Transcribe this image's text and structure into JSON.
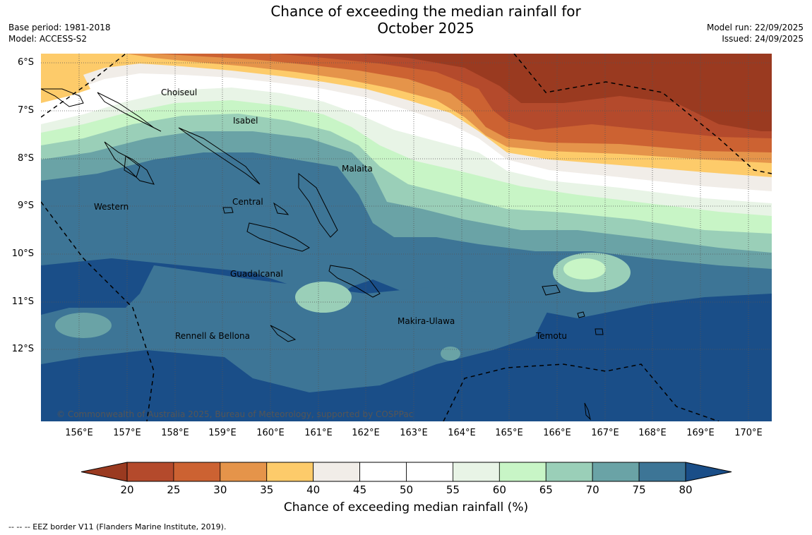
{
  "title_line1": "Chance of exceeding the median rainfall for",
  "title_line2": "October 2025",
  "meta_left": {
    "base_period": "Base period: 1981-2018",
    "model": "Model: ACCESS-S2"
  },
  "meta_right": {
    "model_run": "Model run: 22/09/2025",
    "issued": "Issued: 24/09/2025"
  },
  "lat_labels": [
    "6°S",
    "7°S",
    "8°S",
    "9°S",
    "10°S",
    "11°S",
    "12°S"
  ],
  "lon_labels": [
    "156°E",
    "157°E",
    "158°E",
    "159°E",
    "160°E",
    "161°E",
    "162°E",
    "163°E",
    "164°E",
    "165°E",
    "166°E",
    "167°E",
    "168°E",
    "169°E",
    "170°E"
  ],
  "regions": {
    "choiseul": "Choiseul",
    "isabel": "Isabel",
    "malaita": "Malaita",
    "western": "Western",
    "central": "Central",
    "guadalcanal": "Guadalcanal",
    "makira": "Makira-Ulawa",
    "rennell": "Rennell & Bellona",
    "temotu": "Temotu"
  },
  "copyright": "© Commonwealth of Australia 2025, Bureau of Meteorology, supported by COSPPac",
  "colorbar": {
    "label": "Chance of exceeding median rainfall (%)",
    "ticks": [
      "20",
      "25",
      "30",
      "35",
      "40",
      "45",
      "50",
      "55",
      "60",
      "65",
      "70",
      "75",
      "80"
    ],
    "colors": [
      "#9a3a20",
      "#b44a2c",
      "#cc6232",
      "#e5944a",
      "#fdcb6a",
      "#f1ede8",
      "#ffffff",
      "#ffffff",
      "#e8f4e6",
      "#c8f5c6",
      "#9acfb8",
      "#6aa3a6",
      "#3d7596",
      "#1a4e88"
    ]
  },
  "footnote": "--  --  -- EEZ border V11 (Flanders Marine Institute, 2019)."
}
